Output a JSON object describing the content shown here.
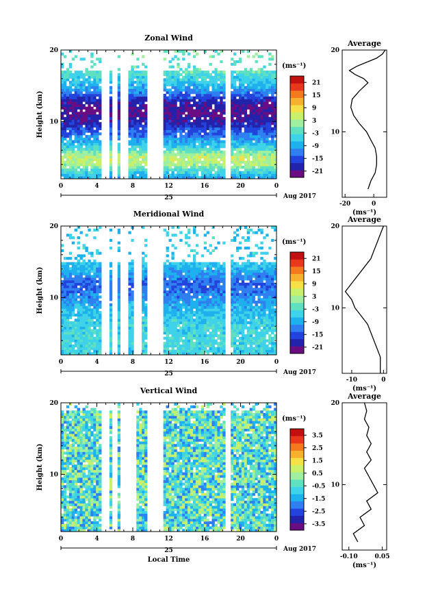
{
  "chart_data": [
    {
      "type": "heatmap",
      "title": "Zonal Wind",
      "ylabel": "Height (km)",
      "yticks": [
        "20",
        "10"
      ],
      "ylim": [
        2,
        20
      ],
      "xticks": [
        "0",
        "4",
        "8",
        "12",
        "16",
        "20",
        "0"
      ],
      "xlim": [
        0,
        24
      ],
      "date_labels": [
        "25",
        "Aug 2017"
      ],
      "colorbar": {
        "unit": "(ms⁻¹)",
        "ticks": [
          "21",
          "15",
          "9",
          "3",
          "-3",
          "-9",
          "-15",
          "-21"
        ],
        "range": [
          -24,
          24
        ]
      },
      "profile": {
        "title": "Average",
        "yticks": [
          "20",
          "10"
        ],
        "xticks": [
          "-20",
          "0"
        ],
        "xlim": [
          -22,
          9
        ],
        "xlabel": "(ms⁻¹)",
        "points": [
          [
            -4,
            3
          ],
          [
            -2,
            4
          ],
          [
            1,
            5
          ],
          [
            2,
            6
          ],
          [
            2,
            7
          ],
          [
            1,
            8
          ],
          [
            -2,
            9
          ],
          [
            -5,
            10
          ],
          [
            -10,
            11
          ],
          [
            -14,
            12
          ],
          [
            -16,
            13
          ],
          [
            -15,
            14
          ],
          [
            -10,
            15
          ],
          [
            -4,
            16
          ],
          [
            -7,
            16.5
          ],
          [
            -13,
            17
          ],
          [
            -17,
            17.5
          ],
          [
            -12,
            18
          ],
          [
            -5,
            18.5
          ],
          [
            2,
            19
          ],
          [
            6,
            19.5
          ],
          [
            8,
            20
          ]
        ]
      },
      "field": {
        "base": [
          [
            2,
            -10
          ],
          [
            3,
            -5
          ],
          [
            4,
            3
          ],
          [
            5,
            5
          ],
          [
            6,
            -2
          ],
          [
            7,
            -8
          ],
          [
            8,
            -12
          ],
          [
            9,
            -16
          ],
          [
            10,
            -19
          ],
          [
            11,
            -21
          ],
          [
            12,
            -21
          ],
          [
            13,
            -18
          ],
          [
            14,
            -12
          ],
          [
            15,
            -8
          ],
          [
            16,
            -5
          ],
          [
            17,
            -2
          ]
        ],
        "blank_above": 17,
        "gaps": [
          5.0,
          6.0,
          7.0,
          10.0,
          11.0,
          18.5
        ],
        "noise": 3
      }
    },
    {
      "type": "heatmap",
      "title": "Meridional Wind",
      "ylabel": "Height (km)",
      "yticks": [
        "20",
        "10"
      ],
      "ylim": [
        2,
        20
      ],
      "xticks": [
        "0",
        "4",
        "8",
        "12",
        "16",
        "20",
        "0"
      ],
      "xlim": [
        0,
        24
      ],
      "date_labels": [
        "25",
        "Aug 2017"
      ],
      "colorbar": {
        "unit": "(ms⁻¹)",
        "ticks": [
          "21",
          "15",
          "9",
          "3",
          "-3",
          "-9",
          "-15",
          "-21"
        ],
        "range": [
          -24,
          24
        ]
      },
      "profile": {
        "title": "Average",
        "yticks": [
          "20",
          "10"
        ],
        "xticks": [
          "-10",
          "0"
        ],
        "xlim": [
          -13,
          1
        ],
        "xlabel": "(ms⁻¹)",
        "points": [
          [
            -1,
            2
          ],
          [
            -1,
            4
          ],
          [
            -2,
            5
          ],
          [
            -3,
            6
          ],
          [
            -4,
            7
          ],
          [
            -5,
            8
          ],
          [
            -7,
            9
          ],
          [
            -9,
            10
          ],
          [
            -10,
            11
          ],
          [
            -12,
            12
          ],
          [
            -10,
            13
          ],
          [
            -8,
            14
          ],
          [
            -6,
            15
          ],
          [
            -4,
            16
          ],
          [
            -3,
            17
          ],
          [
            -2,
            18
          ],
          [
            -1,
            19
          ],
          [
            0,
            20
          ]
        ]
      },
      "field": {
        "base": [
          [
            2,
            -5
          ],
          [
            4,
            -4
          ],
          [
            6,
            -5
          ],
          [
            8,
            -7
          ],
          [
            9,
            -9
          ],
          [
            10,
            -11
          ],
          [
            11,
            -13
          ],
          [
            12,
            -14
          ],
          [
            13,
            -11
          ],
          [
            14,
            -8
          ],
          [
            15,
            -6
          ]
        ],
        "blank_above": 15,
        "gaps": [
          5.0,
          6.0,
          7.0,
          8.5,
          10.0,
          11.0,
          18.5
        ],
        "noise": 3
      }
    },
    {
      "type": "heatmap",
      "title": "Vertical Wind",
      "xlabel": "Local Time",
      "ylabel": "Height (km)",
      "yticks": [
        "20",
        "10"
      ],
      "ylim": [
        2,
        20
      ],
      "xticks": [
        "0",
        "4",
        "8",
        "12",
        "16",
        "20",
        "0"
      ],
      "xlim": [
        0,
        24
      ],
      "date_labels": [
        "25",
        "Aug 2017"
      ],
      "colorbar": {
        "unit": "(ms⁻¹)",
        "ticks": [
          "3.5",
          "2.5",
          "1.5",
          "0.5",
          "-0.5",
          "-1.5",
          "-2.5",
          "-3.5"
        ],
        "range": [
          -4,
          4
        ]
      },
      "profile": {
        "title": "Average",
        "yticks": [
          "20",
          "10"
        ],
        "xticks": [
          "-0.10",
          "0.05"
        ],
        "xlim": [
          -0.13,
          0.07
        ],
        "xlabel": "(ms⁻¹)",
        "points": [
          [
            -0.06,
            3
          ],
          [
            -0.08,
            4
          ],
          [
            -0.03,
            5
          ],
          [
            -0.05,
            6
          ],
          [
            0.0,
            7
          ],
          [
            -0.02,
            8
          ],
          [
            0.03,
            9
          ],
          [
            0.01,
            10
          ],
          [
            -0.01,
            11
          ],
          [
            -0.03,
            12
          ],
          [
            0.0,
            13
          ],
          [
            -0.02,
            14
          ],
          [
            0.0,
            15
          ],
          [
            -0.02,
            16
          ],
          [
            -0.01,
            17
          ],
          [
            -0.03,
            18
          ],
          [
            -0.02,
            19
          ],
          [
            -0.03,
            20
          ]
        ]
      },
      "field": {
        "base": [
          [
            2,
            -0.5
          ],
          [
            20,
            -0.5
          ]
        ],
        "blank_above": 19,
        "gaps": [
          5.0,
          6.0,
          7.0,
          8.0,
          10.0,
          11.0,
          18.5
        ],
        "noise": 1.6
      }
    }
  ]
}
